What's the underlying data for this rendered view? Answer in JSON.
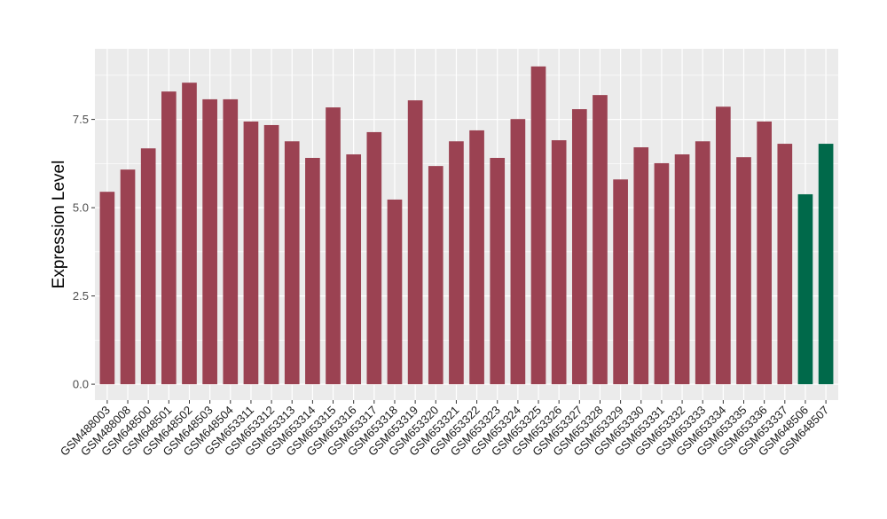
{
  "chart_data": {
    "type": "bar",
    "title": "",
    "xlabel": "",
    "ylabel": "Expression Level",
    "ylim": [
      -0.45,
      9.5
    ],
    "yticks": [
      0.0,
      2.5,
      5.0,
      7.5
    ],
    "ytick_labels": [
      "0.0",
      "2.5",
      "5.0",
      "7.5"
    ],
    "grid": true,
    "legend": "none",
    "categories": [
      "GSM488003",
      "GSM488008",
      "GSM648500",
      "GSM648501",
      "GSM648502",
      "GSM648503",
      "GSM648504",
      "GSM653311",
      "GSM653312",
      "GSM653313",
      "GSM653314",
      "GSM653315",
      "GSM653316",
      "GSM653317",
      "GSM653318",
      "GSM653319",
      "GSM653320",
      "GSM653321",
      "GSM653322",
      "GSM653323",
      "GSM653324",
      "GSM653325",
      "GSM653326",
      "GSM653327",
      "GSM653328",
      "GSM653329",
      "GSM653330",
      "GSM653331",
      "GSM653332",
      "GSM653333",
      "GSM653334",
      "GSM653335",
      "GSM653336",
      "GSM653337",
      "GSM648506",
      "GSM648507"
    ],
    "values": [
      5.45,
      6.08,
      6.68,
      8.29,
      8.54,
      8.07,
      8.07,
      7.44,
      7.34,
      6.88,
      6.41,
      7.84,
      6.51,
      7.14,
      5.23,
      8.04,
      6.18,
      6.88,
      7.19,
      6.41,
      7.51,
      9.0,
      6.91,
      7.79,
      8.19,
      5.8,
      6.71,
      6.26,
      6.51,
      6.88,
      7.86,
      6.43,
      7.44,
      6.81,
      5.38,
      6.81
    ],
    "groups": [
      "a",
      "a",
      "a",
      "a",
      "a",
      "a",
      "a",
      "a",
      "a",
      "a",
      "a",
      "a",
      "a",
      "a",
      "a",
      "a",
      "a",
      "a",
      "a",
      "a",
      "a",
      "a",
      "a",
      "a",
      "a",
      "a",
      "a",
      "a",
      "a",
      "a",
      "a",
      "a",
      "a",
      "a",
      "b",
      "b"
    ],
    "colors": {
      "a": "#9B4252",
      "b": "#00694A",
      "panel": "#EBEBEB",
      "grid": "#FFFFFF"
    }
  }
}
